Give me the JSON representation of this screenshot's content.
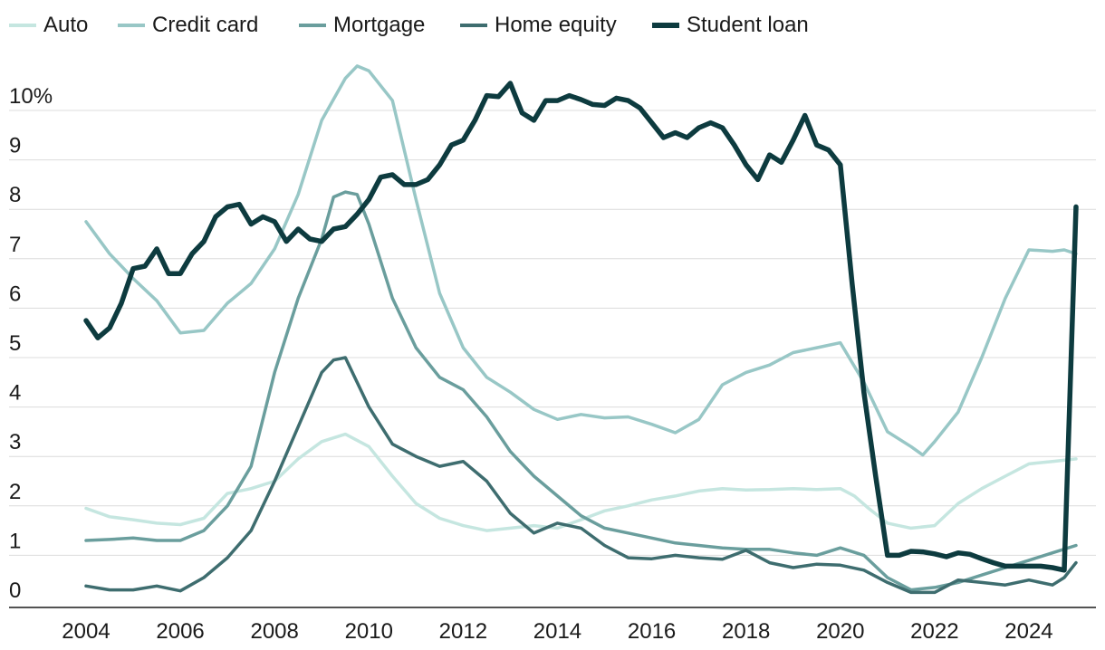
{
  "chart_data": {
    "type": "line",
    "title": "",
    "xlabel": "",
    "ylabel": "",
    "xlim": [
      2003.4,
      2025.4
    ],
    "ylim": [
      0,
      11
    ],
    "x_ticks": [
      {
        "value": 2004,
        "label": "2004"
      },
      {
        "value": 2006,
        "label": "2006"
      },
      {
        "value": 2008,
        "label": "2008"
      },
      {
        "value": 2010,
        "label": "2010"
      },
      {
        "value": 2012,
        "label": "2012"
      },
      {
        "value": 2014,
        "label": "2014"
      },
      {
        "value": 2016,
        "label": "2016"
      },
      {
        "value": 2018,
        "label": "2018"
      },
      {
        "value": 2020,
        "label": "2020"
      },
      {
        "value": 2022,
        "label": "2022"
      },
      {
        "value": 2024,
        "label": "2024"
      }
    ],
    "y_ticks": [
      {
        "value": 0,
        "label": "0"
      },
      {
        "value": 1,
        "label": "1"
      },
      {
        "value": 2,
        "label": "2"
      },
      {
        "value": 3,
        "label": "3"
      },
      {
        "value": 4,
        "label": "4"
      },
      {
        "value": 5,
        "label": "5"
      },
      {
        "value": 6,
        "label": "6"
      },
      {
        "value": 7,
        "label": "7"
      },
      {
        "value": 8,
        "label": "8"
      },
      {
        "value": 9,
        "label": "9"
      },
      {
        "value": 10,
        "label": "10%"
      }
    ],
    "grid": true,
    "legend_position": "top",
    "series": [
      {
        "name": "Auto",
        "color": "#c5e6e0",
        "weight": "normal",
        "points": [
          [
            2004.0,
            1.95
          ],
          [
            2004.5,
            1.78
          ],
          [
            2005.0,
            1.72
          ],
          [
            2005.5,
            1.65
          ],
          [
            2006.0,
            1.62
          ],
          [
            2006.5,
            1.75
          ],
          [
            2007.0,
            2.25
          ],
          [
            2007.5,
            2.35
          ],
          [
            2008.0,
            2.5
          ],
          [
            2008.5,
            2.95
          ],
          [
            2009.0,
            3.3
          ],
          [
            2009.5,
            3.45
          ],
          [
            2010.0,
            3.2
          ],
          [
            2010.5,
            2.6
          ],
          [
            2011.0,
            2.05
          ],
          [
            2011.5,
            1.75
          ],
          [
            2012.0,
            1.6
          ],
          [
            2012.5,
            1.5
          ],
          [
            2013.0,
            1.55
          ],
          [
            2013.5,
            1.6
          ],
          [
            2014.0,
            1.55
          ],
          [
            2014.5,
            1.72
          ],
          [
            2015.0,
            1.9
          ],
          [
            2015.5,
            2.0
          ],
          [
            2016.0,
            2.12
          ],
          [
            2016.5,
            2.2
          ],
          [
            2017.0,
            2.3
          ],
          [
            2017.5,
            2.35
          ],
          [
            2018.0,
            2.32
          ],
          [
            2018.5,
            2.33
          ],
          [
            2019.0,
            2.35
          ],
          [
            2019.5,
            2.33
          ],
          [
            2020.0,
            2.35
          ],
          [
            2020.3,
            2.2
          ],
          [
            2020.6,
            1.95
          ],
          [
            2021.0,
            1.65
          ],
          [
            2021.5,
            1.55
          ],
          [
            2022.0,
            1.6
          ],
          [
            2022.5,
            2.05
          ],
          [
            2023.0,
            2.35
          ],
          [
            2023.5,
            2.6
          ],
          [
            2024.0,
            2.85
          ],
          [
            2024.5,
            2.9
          ],
          [
            2025.0,
            2.95
          ]
        ]
      },
      {
        "name": "Credit card",
        "color": "#98c7c6",
        "weight": "normal",
        "points": [
          [
            2004.0,
            7.75
          ],
          [
            2004.5,
            7.1
          ],
          [
            2005.0,
            6.6
          ],
          [
            2005.5,
            6.15
          ],
          [
            2006.0,
            5.5
          ],
          [
            2006.5,
            5.55
          ],
          [
            2007.0,
            6.1
          ],
          [
            2007.5,
            6.5
          ],
          [
            2008.0,
            7.2
          ],
          [
            2008.5,
            8.3
          ],
          [
            2009.0,
            9.8
          ],
          [
            2009.5,
            10.65
          ],
          [
            2009.75,
            10.9
          ],
          [
            2010.0,
            10.8
          ],
          [
            2010.5,
            10.2
          ],
          [
            2011.0,
            8.2
          ],
          [
            2011.5,
            6.3
          ],
          [
            2012.0,
            5.2
          ],
          [
            2012.5,
            4.6
          ],
          [
            2013.0,
            4.3
          ],
          [
            2013.5,
            3.95
          ],
          [
            2014.0,
            3.75
          ],
          [
            2014.5,
            3.85
          ],
          [
            2015.0,
            3.78
          ],
          [
            2015.5,
            3.8
          ],
          [
            2016.0,
            3.65
          ],
          [
            2016.5,
            3.48
          ],
          [
            2017.0,
            3.75
          ],
          [
            2017.5,
            4.45
          ],
          [
            2018.0,
            4.7
          ],
          [
            2018.5,
            4.85
          ],
          [
            2019.0,
            5.1
          ],
          [
            2019.5,
            5.2
          ],
          [
            2020.0,
            5.3
          ],
          [
            2020.5,
            4.5
          ],
          [
            2021.0,
            3.5
          ],
          [
            2021.5,
            3.2
          ],
          [
            2021.75,
            3.03
          ],
          [
            2022.0,
            3.3
          ],
          [
            2022.5,
            3.9
          ],
          [
            2023.0,
            5.0
          ],
          [
            2023.5,
            6.2
          ],
          [
            2024.0,
            7.18
          ],
          [
            2024.5,
            7.15
          ],
          [
            2024.75,
            7.18
          ],
          [
            2025.0,
            7.1
          ]
        ]
      },
      {
        "name": "Mortgage",
        "color": "#6a9e9d",
        "weight": "normal",
        "points": [
          [
            2004.0,
            1.3
          ],
          [
            2004.5,
            1.32
          ],
          [
            2005.0,
            1.35
          ],
          [
            2005.5,
            1.3
          ],
          [
            2006.0,
            1.3
          ],
          [
            2006.5,
            1.5
          ],
          [
            2007.0,
            2.0
          ],
          [
            2007.5,
            2.8
          ],
          [
            2008.0,
            4.7
          ],
          [
            2008.5,
            6.2
          ],
          [
            2009.0,
            7.4
          ],
          [
            2009.25,
            8.25
          ],
          [
            2009.5,
            8.35
          ],
          [
            2009.75,
            8.3
          ],
          [
            2010.0,
            7.7
          ],
          [
            2010.5,
            6.2
          ],
          [
            2011.0,
            5.2
          ],
          [
            2011.5,
            4.6
          ],
          [
            2012.0,
            4.35
          ],
          [
            2012.5,
            3.8
          ],
          [
            2013.0,
            3.1
          ],
          [
            2013.5,
            2.6
          ],
          [
            2014.0,
            2.2
          ],
          [
            2014.5,
            1.8
          ],
          [
            2015.0,
            1.55
          ],
          [
            2015.5,
            1.45
          ],
          [
            2016.0,
            1.35
          ],
          [
            2016.5,
            1.25
          ],
          [
            2017.0,
            1.2
          ],
          [
            2017.5,
            1.15
          ],
          [
            2018.0,
            1.12
          ],
          [
            2018.5,
            1.12
          ],
          [
            2019.0,
            1.05
          ],
          [
            2019.5,
            1.0
          ],
          [
            2020.0,
            1.15
          ],
          [
            2020.5,
            1.0
          ],
          [
            2021.0,
            0.55
          ],
          [
            2021.5,
            0.3
          ],
          [
            2022.0,
            0.35
          ],
          [
            2022.5,
            0.45
          ],
          [
            2023.0,
            0.6
          ],
          [
            2023.5,
            0.75
          ],
          [
            2024.0,
            0.9
          ],
          [
            2024.5,
            1.05
          ],
          [
            2025.0,
            1.2
          ]
        ]
      },
      {
        "name": "Home equity",
        "color": "#3e6d6f",
        "weight": "normal",
        "points": [
          [
            2004.0,
            0.38
          ],
          [
            2004.5,
            0.3
          ],
          [
            2005.0,
            0.3
          ],
          [
            2005.5,
            0.38
          ],
          [
            2006.0,
            0.28
          ],
          [
            2006.5,
            0.55
          ],
          [
            2007.0,
            0.95
          ],
          [
            2007.5,
            1.5
          ],
          [
            2008.0,
            2.5
          ],
          [
            2008.5,
            3.6
          ],
          [
            2009.0,
            4.7
          ],
          [
            2009.25,
            4.95
          ],
          [
            2009.5,
            5.0
          ],
          [
            2010.0,
            4.0
          ],
          [
            2010.5,
            3.25
          ],
          [
            2011.0,
            3.0
          ],
          [
            2011.5,
            2.8
          ],
          [
            2012.0,
            2.9
          ],
          [
            2012.5,
            2.5
          ],
          [
            2013.0,
            1.85
          ],
          [
            2013.5,
            1.45
          ],
          [
            2014.0,
            1.65
          ],
          [
            2014.5,
            1.55
          ],
          [
            2015.0,
            1.2
          ],
          [
            2015.5,
            0.95
          ],
          [
            2016.0,
            0.93
          ],
          [
            2016.5,
            1.0
          ],
          [
            2017.0,
            0.95
          ],
          [
            2017.5,
            0.92
          ],
          [
            2018.0,
            1.1
          ],
          [
            2018.5,
            0.85
          ],
          [
            2019.0,
            0.75
          ],
          [
            2019.5,
            0.82
          ],
          [
            2020.0,
            0.8
          ],
          [
            2020.5,
            0.7
          ],
          [
            2021.0,
            0.45
          ],
          [
            2021.5,
            0.25
          ],
          [
            2022.0,
            0.25
          ],
          [
            2022.5,
            0.5
          ],
          [
            2023.0,
            0.45
          ],
          [
            2023.5,
            0.4
          ],
          [
            2024.0,
            0.5
          ],
          [
            2024.5,
            0.4
          ],
          [
            2024.75,
            0.55
          ],
          [
            2025.0,
            0.85
          ]
        ]
      },
      {
        "name": "Student loan",
        "color": "#0d3b3f",
        "weight": "bold",
        "points": [
          [
            2004.0,
            5.75
          ],
          [
            2004.25,
            5.4
          ],
          [
            2004.5,
            5.6
          ],
          [
            2004.75,
            6.1
          ],
          [
            2005.0,
            6.8
          ],
          [
            2005.25,
            6.85
          ],
          [
            2005.5,
            7.2
          ],
          [
            2005.75,
            6.7
          ],
          [
            2006.0,
            6.7
          ],
          [
            2006.25,
            7.1
          ],
          [
            2006.5,
            7.35
          ],
          [
            2006.75,
            7.85
          ],
          [
            2007.0,
            8.05
          ],
          [
            2007.25,
            8.1
          ],
          [
            2007.5,
            7.7
          ],
          [
            2007.75,
            7.85
          ],
          [
            2008.0,
            7.75
          ],
          [
            2008.25,
            7.35
          ],
          [
            2008.5,
            7.6
          ],
          [
            2008.75,
            7.4
          ],
          [
            2009.0,
            7.35
          ],
          [
            2009.25,
            7.6
          ],
          [
            2009.5,
            7.65
          ],
          [
            2009.75,
            7.9
          ],
          [
            2010.0,
            8.2
          ],
          [
            2010.25,
            8.65
          ],
          [
            2010.5,
            8.7
          ],
          [
            2010.75,
            8.5
          ],
          [
            2011.0,
            8.5
          ],
          [
            2011.25,
            8.6
          ],
          [
            2011.5,
            8.9
          ],
          [
            2011.75,
            9.3
          ],
          [
            2012.0,
            9.4
          ],
          [
            2012.25,
            9.8
          ],
          [
            2012.5,
            10.3
          ],
          [
            2012.75,
            10.28
          ],
          [
            2013.0,
            10.55
          ],
          [
            2013.25,
            9.95
          ],
          [
            2013.5,
            9.8
          ],
          [
            2013.75,
            10.2
          ],
          [
            2014.0,
            10.2
          ],
          [
            2014.25,
            10.3
          ],
          [
            2014.5,
            10.22
          ],
          [
            2014.75,
            10.12
          ],
          [
            2015.0,
            10.1
          ],
          [
            2015.25,
            10.25
          ],
          [
            2015.5,
            10.2
          ],
          [
            2015.75,
            10.05
          ],
          [
            2016.0,
            9.75
          ],
          [
            2016.25,
            9.45
          ],
          [
            2016.5,
            9.55
          ],
          [
            2016.75,
            9.45
          ],
          [
            2017.0,
            9.65
          ],
          [
            2017.25,
            9.75
          ],
          [
            2017.5,
            9.65
          ],
          [
            2017.75,
            9.3
          ],
          [
            2018.0,
            8.9
          ],
          [
            2018.25,
            8.6
          ],
          [
            2018.5,
            9.1
          ],
          [
            2018.75,
            8.95
          ],
          [
            2019.0,
            9.4
          ],
          [
            2019.25,
            9.9
          ],
          [
            2019.5,
            9.3
          ],
          [
            2019.75,
            9.2
          ],
          [
            2020.0,
            8.9
          ],
          [
            2020.25,
            6.5
          ],
          [
            2020.5,
            4.3
          ],
          [
            2020.75,
            2.6
          ],
          [
            2021.0,
            1.0
          ],
          [
            2021.25,
            1.0
          ],
          [
            2021.5,
            1.08
          ],
          [
            2021.75,
            1.07
          ],
          [
            2022.0,
            1.03
          ],
          [
            2022.25,
            0.97
          ],
          [
            2022.5,
            1.05
          ],
          [
            2022.75,
            1.02
          ],
          [
            2023.0,
            0.93
          ],
          [
            2023.25,
            0.85
          ],
          [
            2023.5,
            0.78
          ],
          [
            2023.75,
            0.78
          ],
          [
            2024.0,
            0.78
          ],
          [
            2024.25,
            0.78
          ],
          [
            2024.5,
            0.75
          ],
          [
            2024.75,
            0.7
          ],
          [
            2025.0,
            8.05
          ]
        ]
      }
    ]
  }
}
